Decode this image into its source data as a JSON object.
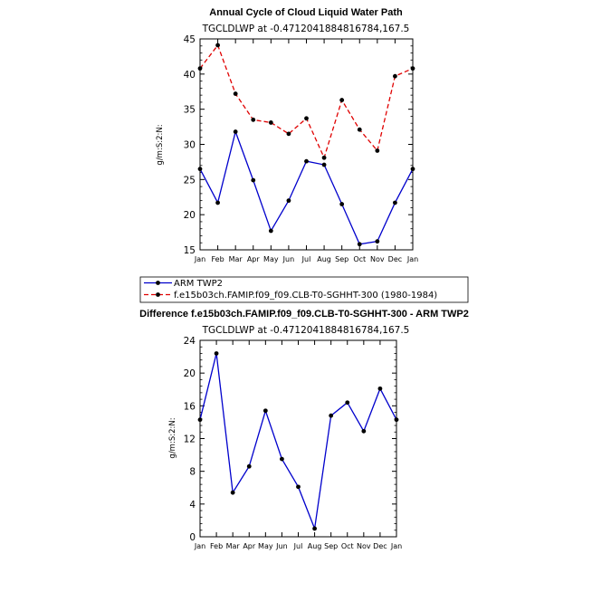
{
  "chart_data": [
    {
      "type": "line",
      "title": "Annual Cycle of Cloud Liquid Water Path",
      "subtitle": "TGCLDLWP at -0.4712041884816784,167.5",
      "ylabel": "g/m:S:2:N:",
      "xlabel": "",
      "categories": [
        "Jan",
        "Feb",
        "Mar",
        "Apr",
        "May",
        "Jun",
        "Jul",
        "Aug",
        "Sep",
        "Oct",
        "Nov",
        "Dec",
        "Jan"
      ],
      "ylim": [
        15,
        45
      ],
      "yticks": [
        15,
        20,
        25,
        30,
        35,
        40,
        45
      ],
      "series": [
        {
          "name": "ARM TWP2",
          "color": "#0000cc",
          "dash": "solid",
          "values": [
            26.5,
            21.7,
            31.8,
            24.9,
            17.7,
            22.0,
            27.6,
            27.1,
            21.5,
            15.8,
            16.2,
            21.7,
            26.5
          ]
        },
        {
          "name": "f.e15b03ch.FAMIP.f09_f09.CLB-T0-SGHHT-300 (1980-1984)",
          "color": "#e00000",
          "dash": "dashed",
          "values": [
            40.8,
            44.1,
            37.2,
            33.5,
            33.1,
            31.5,
            33.7,
            28.1,
            36.3,
            32.1,
            29.1,
            39.7,
            40.8
          ]
        }
      ],
      "legend_placement": "bottom"
    },
    {
      "type": "line",
      "title": "Difference f.e15b03ch.FAMIP.f09_f09.CLB-T0-SGHHT-300 - ARM TWP2",
      "subtitle": "TGCLDLWP at -0.4712041884816784,167.5",
      "ylabel": "g/m:S:2:N:",
      "xlabel": "",
      "categories": [
        "Jan",
        "Feb",
        "Mar",
        "Apr",
        "May",
        "Jun",
        "Jul",
        "Aug",
        "Sep",
        "Oct",
        "Nov",
        "Dec",
        "Jan"
      ],
      "ylim": [
        0,
        24
      ],
      "yticks": [
        0,
        4,
        8,
        12,
        16,
        20,
        24
      ],
      "series": [
        {
          "color": "#0000cc",
          "dash": "solid",
          "values": [
            14.3,
            22.4,
            5.4,
            8.6,
            15.4,
            9.5,
            6.1,
            1.0,
            14.8,
            16.4,
            12.9,
            18.1,
            14.3
          ]
        }
      ]
    }
  ]
}
